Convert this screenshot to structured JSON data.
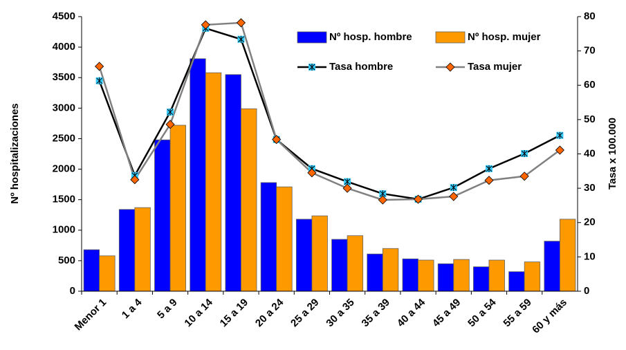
{
  "chart_data": {
    "type": "bar-line",
    "y_label": "Nº hospitalizaciones",
    "y2_label": "Tasa x 100.000",
    "categories": [
      "Menor 1",
      "1 a 4",
      "5 a 9",
      "10 a 14",
      "15 a 19",
      "20 a 24",
      "25 a 29",
      "30 a 35",
      "35 a 39",
      "40 a 44",
      "45 a 49",
      "50 a 54",
      "55 a 59",
      "60 y más"
    ],
    "series": [
      {
        "name": "Nº hosp. hombre",
        "kind": "bar",
        "color": "#0000ff",
        "values": [
          680,
          1340,
          2480,
          3810,
          3550,
          1780,
          1180,
          850,
          610,
          530,
          450,
          400,
          320,
          820
        ]
      },
      {
        "name": "Nº hosp. mujer",
        "kind": "bar",
        "color": "#ff9900",
        "values": [
          580,
          1370,
          2720,
          3580,
          2990,
          1710,
          1235,
          910,
          700,
          510,
          520,
          510,
          480,
          1180
        ]
      },
      {
        "name": "Tasa hombre",
        "kind": "line",
        "axis": "y2",
        "color": "#000000",
        "marker_color": "#33ccff",
        "marker": "asterisk",
        "values": [
          61.3,
          33.7,
          52.2,
          76.6,
          73.4,
          44.2,
          35.7,
          31.9,
          28.4,
          26.8,
          30.2,
          35.7,
          40.1,
          45.4
        ]
      },
      {
        "name": "Tasa mujer",
        "kind": "line",
        "axis": "y2",
        "color": "#808080",
        "marker_color": "#ff6600",
        "marker": "diamond",
        "values": [
          65.5,
          32.5,
          48.6,
          77.6,
          78.2,
          44.2,
          34.5,
          30.0,
          26.6,
          26.8,
          27.6,
          32.3,
          33.5,
          41.1
        ]
      }
    ],
    "ylim": [
      0,
      4500
    ],
    "yticks": [
      0,
      500,
      1000,
      1500,
      2000,
      2500,
      3000,
      3500,
      4000,
      4500
    ],
    "y2lim": [
      0,
      80
    ],
    "y2ticks": [
      0,
      10,
      20,
      30,
      40,
      50,
      60,
      70,
      80
    ],
    "grid": false,
    "legend": "top-right"
  }
}
